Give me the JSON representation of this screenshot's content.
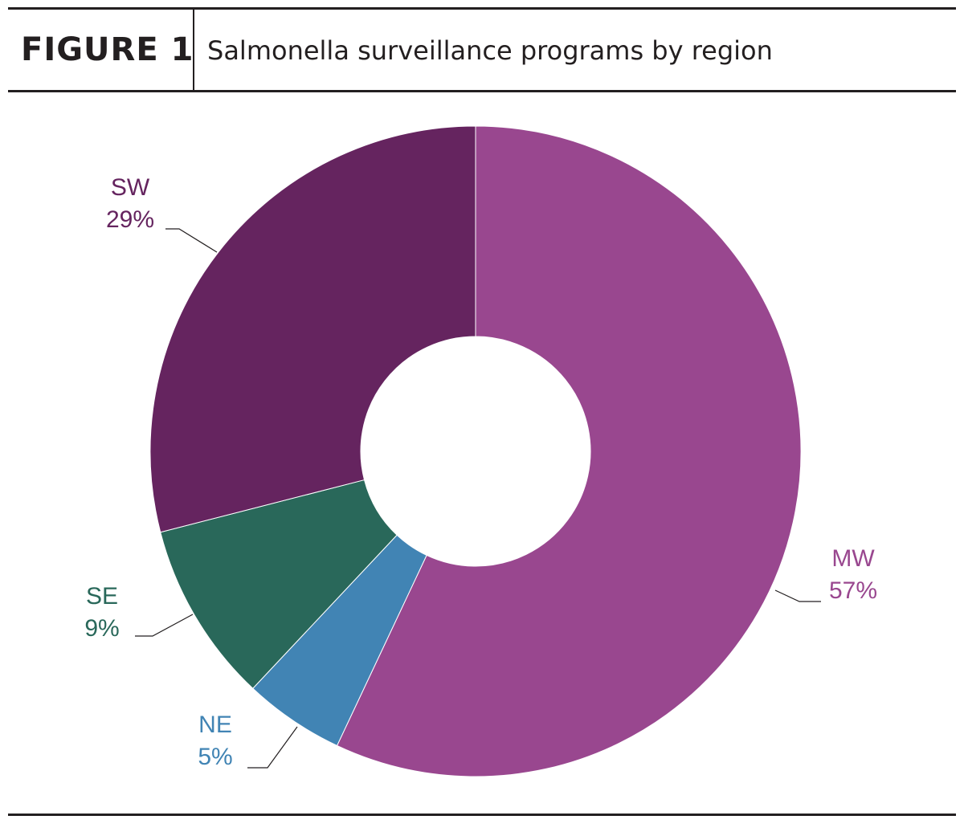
{
  "header": {
    "figure_number": "FIGURE 1",
    "title": "Salmonella surveillance programs by region"
  },
  "chart_data": {
    "type": "pie",
    "donut": true,
    "title": "Salmonella surveillance programs by region",
    "slices": [
      {
        "label": "MW",
        "value": 57,
        "value_label": "57%",
        "color": "#99478f"
      },
      {
        "label": "NE",
        "value": 5,
        "value_label": "5%",
        "color": "#4184b4"
      },
      {
        "label": "SE",
        "value": 9,
        "value_label": "9%",
        "color": "#29685a"
      },
      {
        "label": "SW",
        "value": 29,
        "value_label": "29%",
        "color": "#65245f"
      }
    ]
  }
}
